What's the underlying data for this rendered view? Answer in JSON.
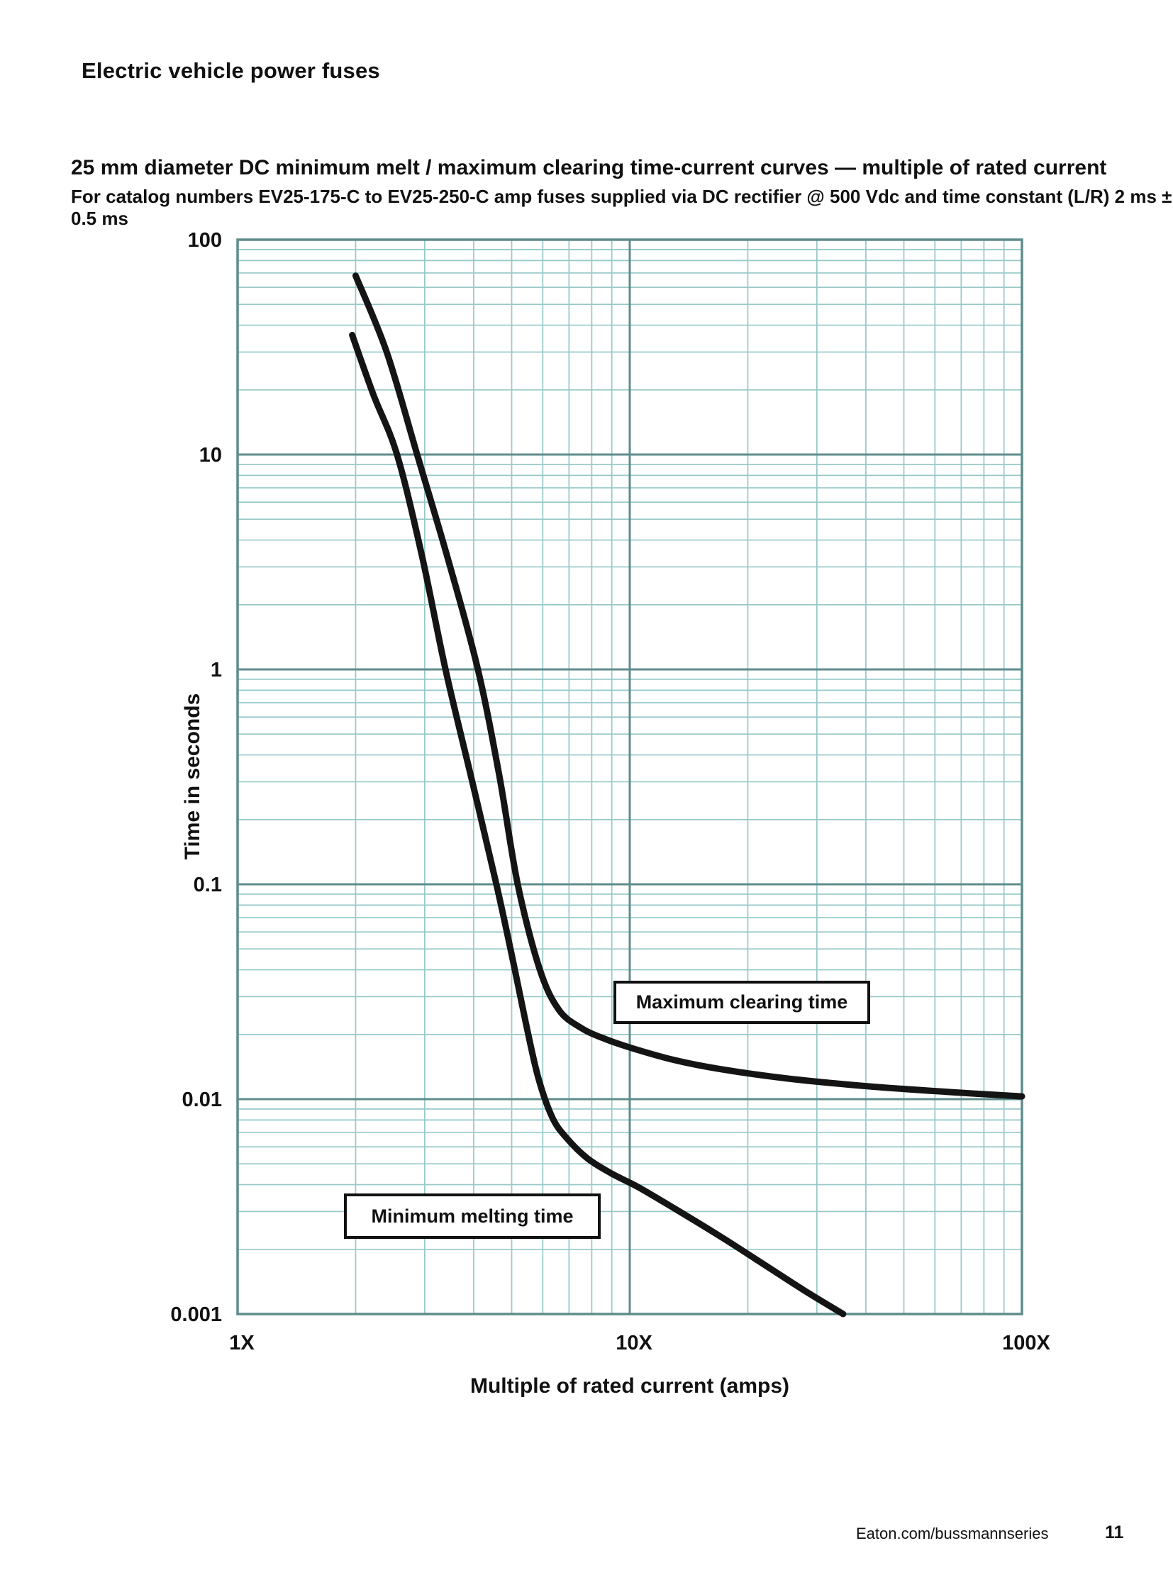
{
  "page": {
    "header": "Electric vehicle power fuses",
    "title": "25 mm diameter DC minimum melt / maximum clearing time-current curves — multiple of rated current",
    "subtitle": "For catalog numbers EV25-175-C to EV25-250-C amp fuses supplied via DC rectifier @ 500 Vdc and time constant (L/R) 2 ms ± 0.5 ms",
    "footer": {
      "link": "Eaton.com/bussmannseries",
      "page_number": "11"
    }
  },
  "chart_data": {
    "type": "line",
    "title": "25 mm diameter DC minimum melt / maximum clearing time-current curves — multiple of rated current",
    "x_axis": {
      "label": "Multiple of rated current (amps)",
      "scale": "log",
      "min": 1,
      "max": 100,
      "ticks": [
        {
          "value": 1,
          "label": "1X"
        },
        {
          "value": 10,
          "label": "10X"
        },
        {
          "value": 100,
          "label": "100X"
        }
      ]
    },
    "y_axis": {
      "label": "Time in seconds",
      "scale": "log",
      "min": 0.001,
      "max": 100,
      "ticks": [
        {
          "value": 100,
          "label": "100"
        },
        {
          "value": 10,
          "label": "10"
        },
        {
          "value": 1,
          "label": "1"
        },
        {
          "value": 0.1,
          "label": "0.1"
        },
        {
          "value": 0.01,
          "label": "0.01"
        },
        {
          "value": 0.001,
          "label": "0.001"
        }
      ]
    },
    "grid": {
      "on": true,
      "major_color": "#5f8c8c",
      "minor_color": "#96c8c8",
      "background": "#ffffff"
    },
    "curve_color": "#141414",
    "legend_position": "in-plot boxed annotations",
    "series": [
      {
        "name": "Maximum clearing time",
        "points_unit": [
          "multiple of rated current (X)",
          "seconds"
        ],
        "points": [
          [
            2.0,
            68
          ],
          [
            2.4,
            30
          ],
          [
            2.87,
            10
          ],
          [
            3.45,
            3.2
          ],
          [
            4.1,
            1.0
          ],
          [
            4.65,
            0.32
          ],
          [
            5.18,
            0.1
          ],
          [
            5.9,
            0.04
          ],
          [
            6.6,
            0.026
          ],
          [
            7.5,
            0.0215
          ],
          [
            8.5,
            0.0193
          ],
          [
            10,
            0.0174
          ],
          [
            13,
            0.0152
          ],
          [
            17,
            0.0138
          ],
          [
            25,
            0.0125
          ],
          [
            40,
            0.0115
          ],
          [
            65,
            0.0108
          ],
          [
            100,
            0.0103
          ]
        ]
      },
      {
        "name": "Minimum melting time",
        "points_unit": [
          "multiple of rated current (X)",
          "seconds"
        ],
        "points": [
          [
            1.96,
            36
          ],
          [
            2.22,
            19
          ],
          [
            2.55,
            10
          ],
          [
            2.95,
            3.4
          ],
          [
            3.39,
            1.0
          ],
          [
            3.95,
            0.31
          ],
          [
            4.57,
            0.1
          ],
          [
            5.0,
            0.047
          ],
          [
            5.45,
            0.022
          ],
          [
            5.85,
            0.0125
          ],
          [
            6.35,
            0.0082
          ],
          [
            6.9,
            0.0066
          ],
          [
            7.8,
            0.0053
          ],
          [
            9.0,
            0.0045
          ],
          [
            10.5,
            0.0039
          ],
          [
            13,
            0.0031
          ],
          [
            17,
            0.0023
          ],
          [
            22,
            0.0017
          ],
          [
            28,
            0.00128
          ],
          [
            35,
            0.001
          ]
        ]
      }
    ]
  }
}
